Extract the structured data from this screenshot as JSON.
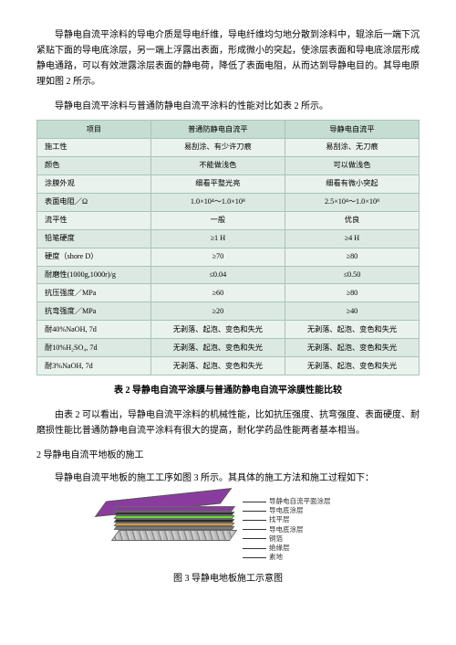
{
  "paragraphs": {
    "p1": "导静电自流平涂料的导电介质是导电纤维，导电纤维均匀地分散到涂料中，辊涂后一端下沉紧贴下面的导电底涂层，另一端上浮露出表面，形成微小的突起，使涂层表面和导电底涂层形成静电通路，可以有效泄露涂层表面的静电荷，降低了表面电阻，从而达到导静电目的。其导电原理如图 2 所示。",
    "p2": "导静电自流平涂料与普通防静电自流平涂料的性能对比如表 2 所示。",
    "p3": "由表 2 可以看出，导静电自流平涂料的机械性能，比如抗压强度、抗弯强度、表面硬度、耐磨损性能比普通防静电自流平涂料有很大的提高，耐化学药品性能两者基本相当。",
    "p4": "导静电自流平地板的施工工序如图 3 所示。其具体的施工方法和施工过程如下："
  },
  "section2": "2 导静电自流平地板的施工",
  "table": {
    "header": [
      "项目",
      "普通防静电自流平",
      "导静电自流平"
    ],
    "rows": [
      [
        "施工性",
        "易刮涂、有少许刀痕",
        "易刮涂、无刀痕"
      ],
      [
        "颜色",
        "不能做浅色",
        "可以做浅色"
      ],
      [
        "涂膜外观",
        "细看平整光亮",
        "细看有微小突起"
      ],
      [
        "表面电阻／Ω",
        "1.0×10⁴～1.0×10⁸",
        "2.5×10⁴～1.0×10⁸"
      ],
      [
        "流平性",
        "一般",
        "优良"
      ],
      [
        "铅笔硬度",
        "≥1 H",
        "≥4 H"
      ],
      [
        "硬度（shore D）",
        "≥70",
        "≥80"
      ],
      [
        "耐磨性(1000g,1000r)/g",
        "≤0.04",
        "≤0.50"
      ],
      [
        "抗压强度／MPa",
        "≥60",
        "≥80"
      ],
      [
        "抗弯强度／MPa",
        "≥20",
        "≥40"
      ],
      [
        "耐40%NaOH, 7d",
        "无剥落、起泡、变色和失光",
        "无剥落、起泡、变色和失光"
      ],
      [
        "耐10%H₂SO₄, 7d",
        "无剥落、起泡、变色和失光",
        "无剥落、起泡、变色和失光"
      ],
      [
        "耐3%NaOH, 7d",
        "无剥落、起泡、变色和失光",
        "无剥落、起泡、变色和失光"
      ]
    ],
    "caption": "表 2 导静电自流平涂膜与普通防静电自流平涂膜性能比较"
  },
  "diagram": {
    "labels": [
      "导静电自流平面涂层",
      "导电底涂层",
      "找平层",
      "导电底涂层",
      "铜箔",
      "绝缘层",
      "素地"
    ],
    "caption": "图 3 导静电地板施工示意图"
  }
}
